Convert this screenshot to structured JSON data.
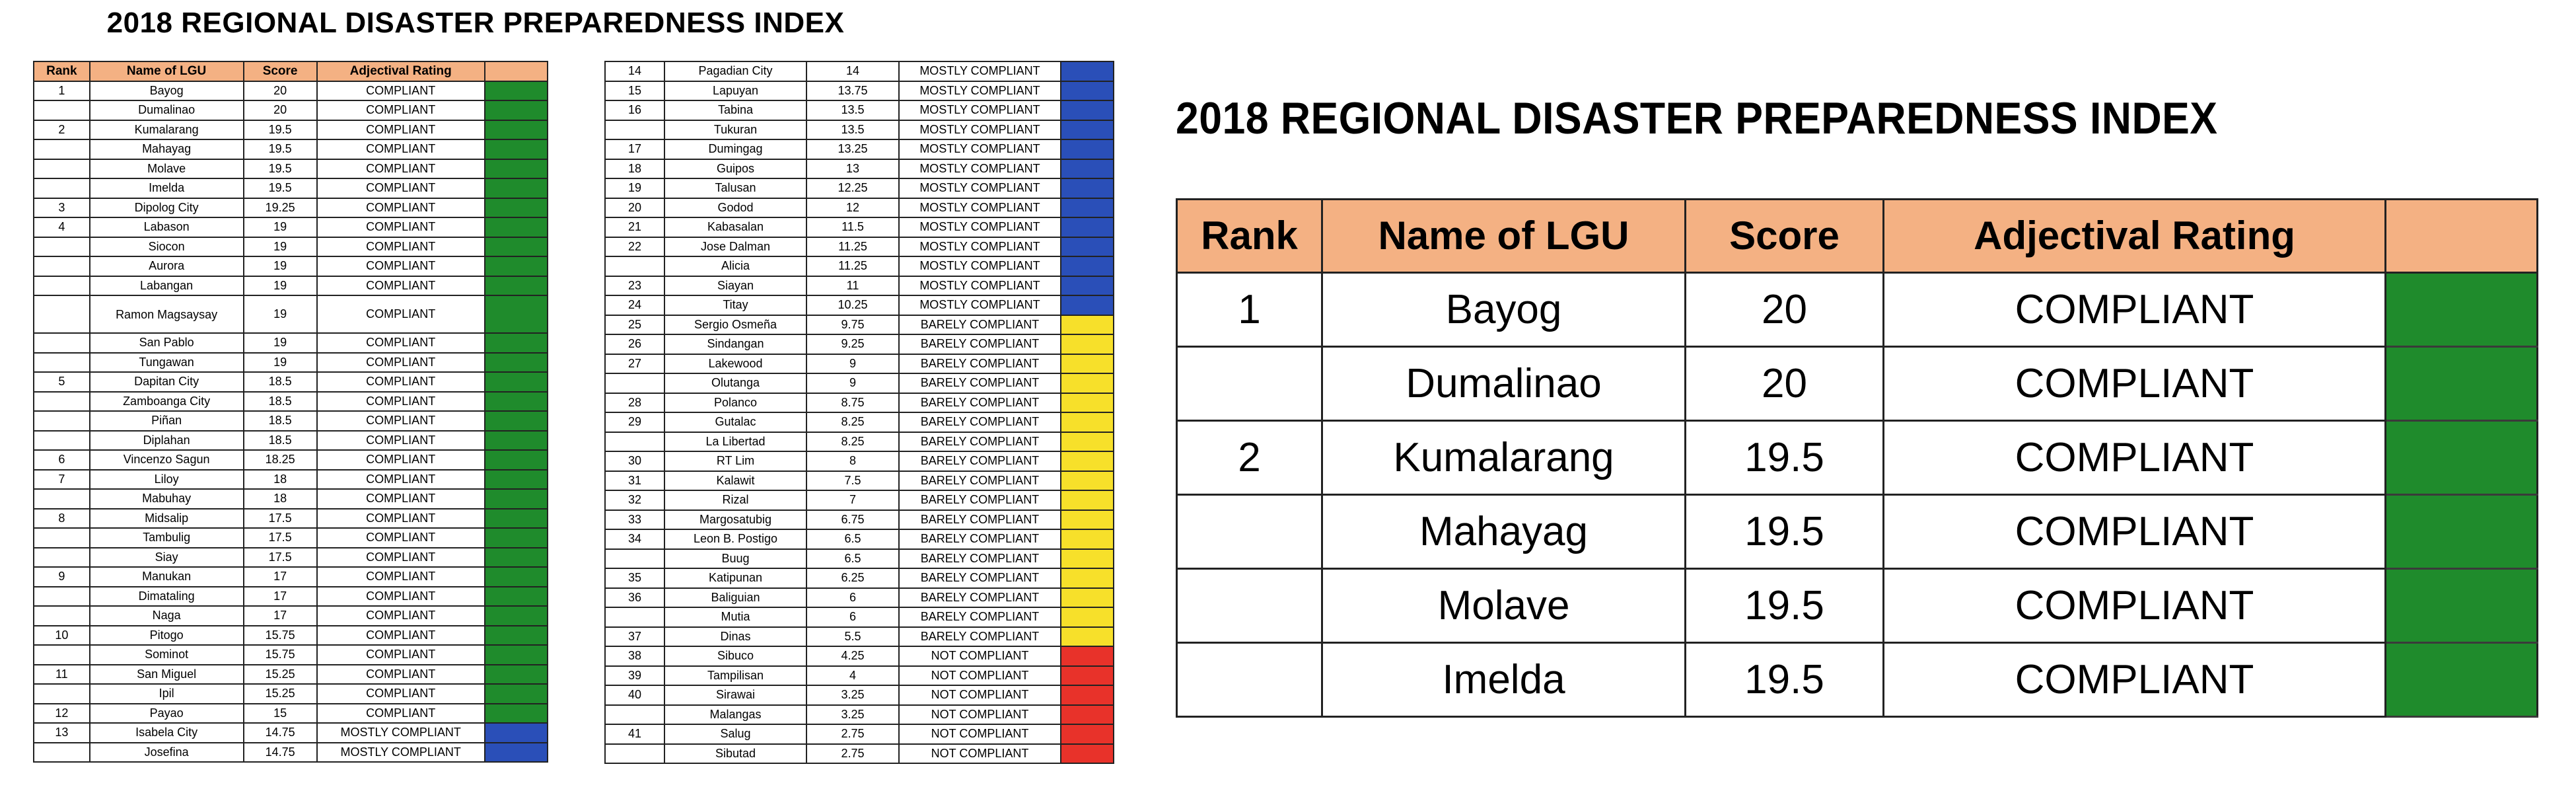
{
  "title": "2018 REGIONAL DISASTER PREPAREDNESS INDEX",
  "headers": {
    "rank": "Rank",
    "lgu": "Name of LGU",
    "score": "Score",
    "rating": "Adjectival Rating"
  },
  "colors": {
    "header": "#f4b183",
    "COMPLIANT": "#1f8b2c",
    "MOSTLY COMPLIANT": "#2a4fb8",
    "BARELY COMPLIANT": "#f7e02a",
    "NOT COMPLIANT": "#e8322a"
  },
  "rows": [
    {
      "rank": "1",
      "lgu": "Bayog",
      "score": "20",
      "rating": "COMPLIANT"
    },
    {
      "rank": "",
      "lgu": "Dumalinao",
      "score": "20",
      "rating": "COMPLIANT"
    },
    {
      "rank": "2",
      "lgu": "Kumalarang",
      "score": "19.5",
      "rating": "COMPLIANT"
    },
    {
      "rank": "",
      "lgu": "Mahayag",
      "score": "19.5",
      "rating": "COMPLIANT"
    },
    {
      "rank": "",
      "lgu": "Molave",
      "score": "19.5",
      "rating": "COMPLIANT"
    },
    {
      "rank": "",
      "lgu": "Imelda",
      "score": "19.5",
      "rating": "COMPLIANT"
    },
    {
      "rank": "3",
      "lgu": "Dipolog City",
      "score": "19.25",
      "rating": "COMPLIANT"
    },
    {
      "rank": "4",
      "lgu": "Labason",
      "score": "19",
      "rating": "COMPLIANT"
    },
    {
      "rank": "",
      "lgu": "Siocon",
      "score": "19",
      "rating": "COMPLIANT"
    },
    {
      "rank": "",
      "lgu": "Aurora",
      "score": "19",
      "rating": "COMPLIANT"
    },
    {
      "rank": "",
      "lgu": "Labangan",
      "score": "19",
      "rating": "COMPLIANT"
    },
    {
      "rank": "",
      "lgu": "Ramon Magsaysay",
      "score": "19",
      "rating": "COMPLIANT",
      "tall": true
    },
    {
      "rank": "",
      "lgu": "San Pablo",
      "score": "19",
      "rating": "COMPLIANT"
    },
    {
      "rank": "",
      "lgu": "Tungawan",
      "score": "19",
      "rating": "COMPLIANT"
    },
    {
      "rank": "5",
      "lgu": "Dapitan City",
      "score": "18.5",
      "rating": "COMPLIANT"
    },
    {
      "rank": "",
      "lgu": "Zamboanga City",
      "score": "18.5",
      "rating": "COMPLIANT"
    },
    {
      "rank": "",
      "lgu": "Piñan",
      "score": "18.5",
      "rating": "COMPLIANT"
    },
    {
      "rank": "",
      "lgu": "Diplahan",
      "score": "18.5",
      "rating": "COMPLIANT"
    },
    {
      "rank": "6",
      "lgu": "Vincenzo Sagun",
      "score": "18.25",
      "rating": "COMPLIANT"
    },
    {
      "rank": "7",
      "lgu": "Liloy",
      "score": "18",
      "rating": "COMPLIANT"
    },
    {
      "rank": "",
      "lgu": "Mabuhay",
      "score": "18",
      "rating": "COMPLIANT"
    },
    {
      "rank": "8",
      "lgu": "Midsalip",
      "score": "17.5",
      "rating": "COMPLIANT"
    },
    {
      "rank": "",
      "lgu": "Tambulig",
      "score": "17.5",
      "rating": "COMPLIANT"
    },
    {
      "rank": "",
      "lgu": "Siay",
      "score": "17.5",
      "rating": "COMPLIANT"
    },
    {
      "rank": "9",
      "lgu": "Manukan",
      "score": "17",
      "rating": "COMPLIANT"
    },
    {
      "rank": "",
      "lgu": "Dimataling",
      "score": "17",
      "rating": "COMPLIANT"
    },
    {
      "rank": "",
      "lgu": "Naga",
      "score": "17",
      "rating": "COMPLIANT"
    },
    {
      "rank": "10",
      "lgu": "Pitogo",
      "score": "15.75",
      "rating": "COMPLIANT"
    },
    {
      "rank": "",
      "lgu": "Sominot",
      "score": "15.75",
      "rating": "COMPLIANT"
    },
    {
      "rank": "11",
      "lgu": "San Miguel",
      "score": "15.25",
      "rating": "COMPLIANT"
    },
    {
      "rank": "",
      "lgu": "Ipil",
      "score": "15.25",
      "rating": "COMPLIANT"
    },
    {
      "rank": "12",
      "lgu": "Payao",
      "score": "15",
      "rating": "COMPLIANT"
    },
    {
      "rank": "13",
      "lgu": "Isabela City",
      "score": "14.75",
      "rating": "MOSTLY COMPLIANT"
    },
    {
      "rank": "",
      "lgu": "Josefina",
      "score": "14.75",
      "rating": "MOSTLY COMPLIANT"
    },
    {
      "rank": "14",
      "lgu": "Pagadian City",
      "score": "14",
      "rating": "MOSTLY COMPLIANT"
    },
    {
      "rank": "15",
      "lgu": "Lapuyan",
      "score": "13.75",
      "rating": "MOSTLY COMPLIANT"
    },
    {
      "rank": "16",
      "lgu": "Tabina",
      "score": "13.5",
      "rating": "MOSTLY COMPLIANT"
    },
    {
      "rank": "",
      "lgu": "Tukuran",
      "score": "13.5",
      "rating": "MOSTLY COMPLIANT"
    },
    {
      "rank": "17",
      "lgu": "Dumingag",
      "score": "13.25",
      "rating": "MOSTLY COMPLIANT"
    },
    {
      "rank": "18",
      "lgu": "Guipos",
      "score": "13",
      "rating": "MOSTLY COMPLIANT"
    },
    {
      "rank": "19",
      "lgu": "Talusan",
      "score": "12.25",
      "rating": "MOSTLY COMPLIANT"
    },
    {
      "rank": "20",
      "lgu": "Godod",
      "score": "12",
      "rating": "MOSTLY COMPLIANT"
    },
    {
      "rank": "21",
      "lgu": "Kabasalan",
      "score": "11.5",
      "rating": "MOSTLY COMPLIANT"
    },
    {
      "rank": "22",
      "lgu": "Jose Dalman",
      "score": "11.25",
      "rating": "MOSTLY COMPLIANT"
    },
    {
      "rank": "",
      "lgu": "Alicia",
      "score": "11.25",
      "rating": "MOSTLY COMPLIANT"
    },
    {
      "rank": "23",
      "lgu": "Siayan",
      "score": "11",
      "rating": "MOSTLY COMPLIANT"
    },
    {
      "rank": "24",
      "lgu": "Titay",
      "score": "10.25",
      "rating": "MOSTLY COMPLIANT"
    },
    {
      "rank": "25",
      "lgu": "Sergio Osmeña",
      "score": "9.75",
      "rating": "BARELY COMPLIANT"
    },
    {
      "rank": "26",
      "lgu": "Sindangan",
      "score": "9.25",
      "rating": "BARELY COMPLIANT"
    },
    {
      "rank": "27",
      "lgu": "Lakewood",
      "score": "9",
      "rating": "BARELY COMPLIANT"
    },
    {
      "rank": "",
      "lgu": "Olutanga",
      "score": "9",
      "rating": "BARELY COMPLIANT"
    },
    {
      "rank": "28",
      "lgu": "Polanco",
      "score": "8.75",
      "rating": "BARELY COMPLIANT"
    },
    {
      "rank": "29",
      "lgu": "Gutalac",
      "score": "8.25",
      "rating": "BARELY COMPLIANT"
    },
    {
      "rank": "",
      "lgu": "La Libertad",
      "score": "8.25",
      "rating": "BARELY COMPLIANT"
    },
    {
      "rank": "30",
      "lgu": "RT Lim",
      "score": "8",
      "rating": "BARELY COMPLIANT"
    },
    {
      "rank": "31",
      "lgu": "Kalawit",
      "score": "7.5",
      "rating": "BARELY COMPLIANT"
    },
    {
      "rank": "32",
      "lgu": "Rizal",
      "score": "7",
      "rating": "BARELY COMPLIANT"
    },
    {
      "rank": "33",
      "lgu": "Margosatubig",
      "score": "6.75",
      "rating": "BARELY COMPLIANT"
    },
    {
      "rank": "34",
      "lgu": "Leon B. Postigo",
      "score": "6.5",
      "rating": "BARELY COMPLIANT"
    },
    {
      "rank": "",
      "lgu": "Buug",
      "score": "6.5",
      "rating": "BARELY COMPLIANT"
    },
    {
      "rank": "35",
      "lgu": "Katipunan",
      "score": "6.25",
      "rating": "BARELY COMPLIANT"
    },
    {
      "rank": "36",
      "lgu": "Baliguian",
      "score": "6",
      "rating": "BARELY COMPLIANT"
    },
    {
      "rank": "",
      "lgu": "Mutia",
      "score": "6",
      "rating": "BARELY COMPLIANT"
    },
    {
      "rank": "37",
      "lgu": "Dinas",
      "score": "5.5",
      "rating": "BARELY COMPLIANT"
    },
    {
      "rank": "38",
      "lgu": "Sibuco",
      "score": "4.25",
      "rating": "NOT COMPLIANT"
    },
    {
      "rank": "39",
      "lgu": "Tampilisan",
      "score": "4",
      "rating": "NOT COMPLIANT"
    },
    {
      "rank": "40",
      "lgu": "Sirawai",
      "score": "3.25",
      "rating": "NOT COMPLIANT"
    },
    {
      "rank": "",
      "lgu": "Malangas",
      "score": "3.25",
      "rating": "NOT COMPLIANT"
    },
    {
      "rank": "41",
      "lgu": "Salug",
      "score": "2.75",
      "rating": "NOT COMPLIANT"
    },
    {
      "rank": "",
      "lgu": "Sibutad",
      "score": "2.75",
      "rating": "NOT COMPLIANT"
    }
  ],
  "zoom_rows": [
    {
      "rank": "1",
      "lgu": "Bayog",
      "score": "20",
      "rating": "COMPLIANT"
    },
    {
      "rank": "",
      "lgu": "Dumalinao",
      "score": "20",
      "rating": "COMPLIANT"
    },
    {
      "rank": "2",
      "lgu": "Kumalarang",
      "score": "19.5",
      "rating": "COMPLIANT"
    },
    {
      "rank": "",
      "lgu": "Mahayag",
      "score": "19.5",
      "rating": "COMPLIANT"
    },
    {
      "rank": "",
      "lgu": "Molave",
      "score": "19.5",
      "rating": "COMPLIANT"
    },
    {
      "rank": "",
      "lgu": "Imelda",
      "score": "19.5",
      "rating": "COMPLIANT"
    }
  ]
}
